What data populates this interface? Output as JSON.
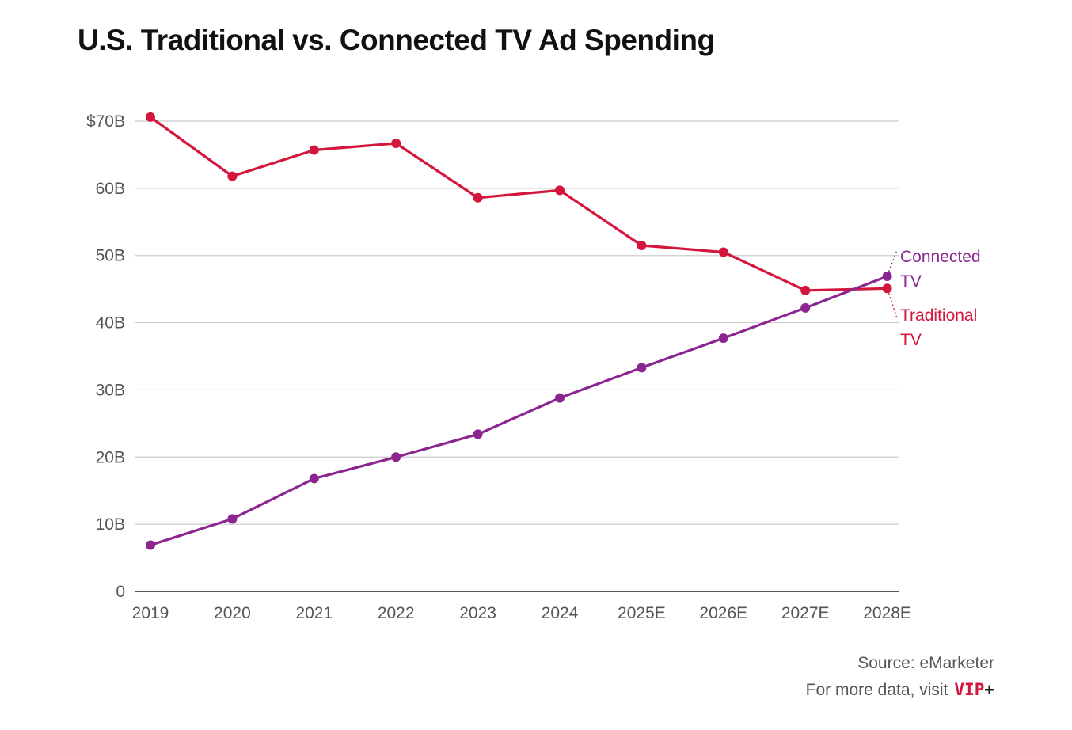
{
  "title": "U.S. Traditional vs. Connected TV Ad Spending",
  "footer": {
    "source": "Source: eMarketer",
    "more_prefix": "For more data, visit",
    "vip_text": "VIP",
    "vip_plus": "+"
  },
  "colors": {
    "connected": "#8b2590",
    "traditional": "#d4163c",
    "grid": "#cccccc",
    "axis": "#222222",
    "text": "#555555"
  },
  "chart_data": {
    "type": "line",
    "title": "U.S. Traditional vs. Connected TV Ad Spending",
    "xlabel": "",
    "ylabel": "",
    "x": [
      "2019",
      "2020",
      "2021",
      "2022",
      "2023",
      "2024",
      "2025E",
      "2026E",
      "2027E",
      "2028E"
    ],
    "ylim": [
      0,
      70
    ],
    "yticks": [
      0,
      10,
      20,
      30,
      40,
      50,
      60,
      70
    ],
    "ytick_labels": [
      "0",
      "10B",
      "20B",
      "30B",
      "40B",
      "50B",
      "60B",
      "$70B"
    ],
    "grid": true,
    "series": [
      {
        "name": "Traditional TV",
        "label_lines": [
          "Traditional",
          "TV"
        ],
        "color": "#d4163c",
        "values": [
          70.6,
          61.8,
          65.7,
          66.7,
          58.6,
          59.7,
          51.5,
          50.5,
          44.8,
          45.1
        ]
      },
      {
        "name": "Connected TV",
        "label_lines": [
          "Connected",
          "TV"
        ],
        "color": "#8b2590",
        "values": [
          6.9,
          10.8,
          16.8,
          20.0,
          23.4,
          28.8,
          33.3,
          37.7,
          42.2,
          46.9
        ]
      }
    ]
  }
}
